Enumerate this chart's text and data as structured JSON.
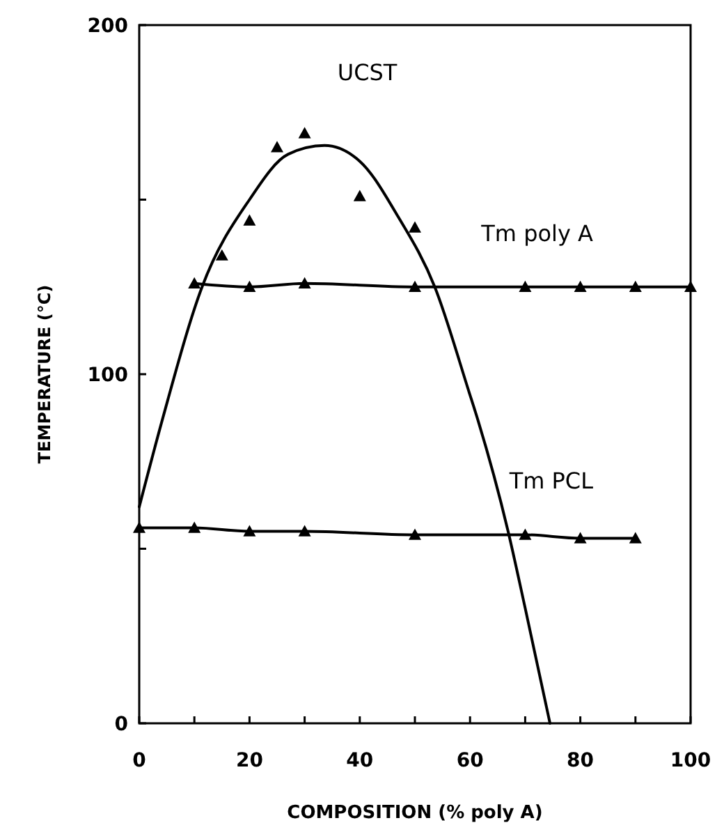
{
  "chart_data": {
    "type": "line",
    "xlabel": "COMPOSITION (% poly A)",
    "ylabel": "TEMPERATURE (°C)",
    "xlim": [
      0,
      100
    ],
    "xticks": [
      0,
      {
        "value": 10,
        "label": null
      },
      20,
      {
        "value": 30,
        "label": null
      },
      40,
      {
        "value": 50,
        "label": null
      },
      60,
      {
        "value": 70,
        "label": null
      },
      80,
      {
        "value": 90,
        "label": null
      },
      100
    ],
    "ylim": [
      0,
      200
    ],
    "yticks": [
      0,
      {
        "value": 50,
        "label": null
      },
      100,
      {
        "value": 150,
        "label": null
      },
      200
    ],
    "grid": false,
    "legend": false,
    "series": [
      {
        "type": "scatter",
        "name": "UCST",
        "color": "#000000",
        "marker": "triangle",
        "x": [
          15,
          20,
          25,
          30,
          40,
          50
        ],
        "values": [
          134,
          144,
          165,
          169,
          151,
          142
        ]
      },
      {
        "color": "#000000",
        "marker": "none",
        "x": [
          0,
          4.2,
          11.4,
          20,
          27,
          33.6,
          40,
          47,
          53.6,
          59.8,
          61.4,
          66.9,
          70,
          74.5
        ],
        "values": [
          62,
          87,
          125,
          150,
          163,
          165.5,
          161,
          145,
          125,
          95,
          87,
          55,
          33,
          0
        ]
      },
      {
        "name": "Tm poly A",
        "color": "#000000",
        "marker": "triangle",
        "x": [
          10,
          20,
          30,
          50,
          70,
          80,
          90,
          100
        ],
        "values": [
          126,
          125,
          126,
          125,
          125,
          125,
          125,
          125
        ]
      },
      {
        "name": "Tm PCL",
        "color": "#000000",
        "marker": "triangle",
        "x": [
          0,
          10,
          20,
          30,
          50,
          70,
          80,
          90
        ],
        "values": [
          56,
          56,
          55,
          55,
          54,
          54,
          53,
          53
        ]
      }
    ]
  }
}
